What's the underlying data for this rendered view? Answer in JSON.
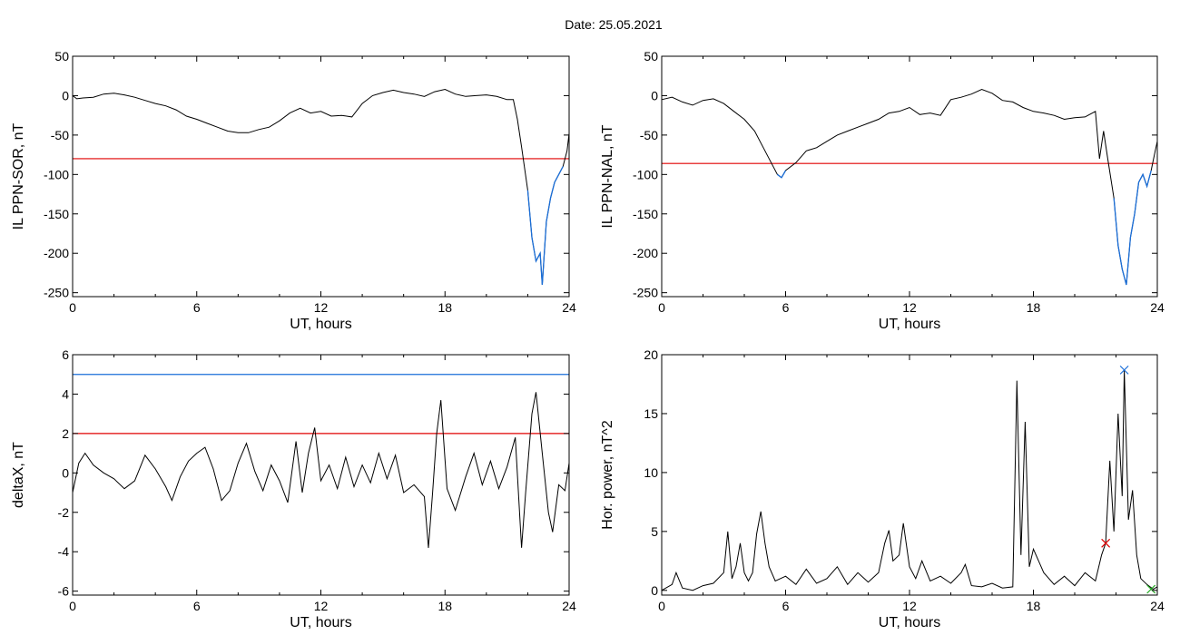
{
  "header": {
    "date_label": "Date:  25.05.2021"
  },
  "colors": {
    "axis": "#000000",
    "trace": "#000000",
    "threshold_red": "#e00000",
    "threshold_blue": "#1a6ed8",
    "marker_green": "#1faa1f"
  },
  "chart_data": [
    {
      "type": "line",
      "id": "sor",
      "ylabel": "IL PPN-SOR, nT",
      "xlabel": "UT, hours",
      "xlim": [
        0,
        24
      ],
      "ylim": [
        -255,
        50
      ],
      "xticks": [
        0,
        6,
        12,
        18,
        24
      ],
      "yticks": [
        50,
        0,
        -50,
        -100,
        -150,
        -200,
        -250
      ],
      "threshold": {
        "value": -80,
        "color": "#e00000"
      },
      "highlight_below_threshold": true,
      "series": [
        {
          "values": [
            [
              0,
              0
            ],
            [
              0.2,
              -4
            ],
            [
              0.5,
              -3
            ],
            [
              1,
              -2
            ],
            [
              1.5,
              2
            ],
            [
              2,
              3
            ],
            [
              2.5,
              1
            ],
            [
              3,
              -2
            ],
            [
              3.5,
              -6
            ],
            [
              4,
              -10
            ],
            [
              4.5,
              -13
            ],
            [
              5,
              -18
            ],
            [
              5.5,
              -26
            ],
            [
              6,
              -30
            ],
            [
              6.5,
              -35
            ],
            [
              7,
              -40
            ],
            [
              7.5,
              -45
            ],
            [
              8,
              -47
            ],
            [
              8.5,
              -47
            ],
            [
              9,
              -43
            ],
            [
              9.5,
              -40
            ],
            [
              10,
              -32
            ],
            [
              10.5,
              -22
            ],
            [
              11,
              -16
            ],
            [
              11.5,
              -22
            ],
            [
              12,
              -20
            ],
            [
              12.5,
              -26
            ],
            [
              13,
              -25
            ],
            [
              13.5,
              -27
            ],
            [
              14,
              -10
            ],
            [
              14.5,
              0
            ],
            [
              15,
              4
            ],
            [
              15.5,
              7
            ],
            [
              16,
              4
            ],
            [
              16.5,
              2
            ],
            [
              17,
              -1
            ],
            [
              17.5,
              5
            ],
            [
              18,
              8
            ],
            [
              18.5,
              2
            ],
            [
              19,
              -1
            ],
            [
              19.5,
              0
            ],
            [
              20,
              1
            ],
            [
              20.5,
              -1
            ],
            [
              21,
              -5
            ],
            [
              21.3,
              -5
            ],
            [
              21.5,
              -30
            ],
            [
              21.7,
              -65
            ],
            [
              22.0,
              -120
            ],
            [
              22.2,
              -180
            ],
            [
              22.4,
              -210
            ],
            [
              22.6,
              -200
            ],
            [
              22.7,
              -240
            ],
            [
              22.9,
              -160
            ],
            [
              23.1,
              -130
            ],
            [
              23.3,
              -110
            ],
            [
              23.5,
              -100
            ],
            [
              23.7,
              -90
            ],
            [
              23.9,
              -70
            ],
            [
              24,
              -48
            ]
          ]
        }
      ]
    },
    {
      "type": "line",
      "id": "nal",
      "ylabel": "IL PPN-NAL, nT",
      "xlabel": "UT, hours",
      "xlim": [
        0,
        24
      ],
      "ylim": [
        -255,
        50
      ],
      "xticks": [
        0,
        6,
        12,
        18,
        24
      ],
      "yticks": [
        50,
        0,
        -50,
        -100,
        -150,
        -200,
        -250
      ],
      "threshold": {
        "value": -86,
        "color": "#e00000"
      },
      "highlight_below_threshold": true,
      "series": [
        {
          "values": [
            [
              0,
              -5
            ],
            [
              0.5,
              -2
            ],
            [
              1,
              -8
            ],
            [
              1.5,
              -12
            ],
            [
              2,
              -6
            ],
            [
              2.5,
              -4
            ],
            [
              3,
              -10
            ],
            [
              3.5,
              -20
            ],
            [
              4,
              -30
            ],
            [
              4.5,
              -45
            ],
            [
              5,
              -70
            ],
            [
              5.3,
              -85
            ],
            [
              5.6,
              -100
            ],
            [
              5.8,
              -104
            ],
            [
              6,
              -95
            ],
            [
              6.5,
              -85
            ],
            [
              7,
              -70
            ],
            [
              7.5,
              -66
            ],
            [
              8,
              -58
            ],
            [
              8.5,
              -50
            ],
            [
              9,
              -45
            ],
            [
              9.5,
              -40
            ],
            [
              10,
              -35
            ],
            [
              10.5,
              -30
            ],
            [
              11,
              -22
            ],
            [
              11.5,
              -20
            ],
            [
              12,
              -15
            ],
            [
              12.5,
              -24
            ],
            [
              13,
              -22
            ],
            [
              13.5,
              -25
            ],
            [
              14,
              -5
            ],
            [
              14.5,
              -2
            ],
            [
              15,
              2
            ],
            [
              15.5,
              8
            ],
            [
              16,
              3
            ],
            [
              16.5,
              -6
            ],
            [
              17,
              -8
            ],
            [
              17.5,
              -15
            ],
            [
              18,
              -20
            ],
            [
              18.5,
              -22
            ],
            [
              19,
              -25
            ],
            [
              19.5,
              -30
            ],
            [
              20,
              -28
            ],
            [
              20.5,
              -27
            ],
            [
              21,
              -20
            ],
            [
              21.2,
              -80
            ],
            [
              21.4,
              -45
            ],
            [
              21.6,
              -80
            ],
            [
              21.9,
              -130
            ],
            [
              22.1,
              -190
            ],
            [
              22.3,
              -220
            ],
            [
              22.5,
              -240
            ],
            [
              22.7,
              -180
            ],
            [
              22.9,
              -150
            ],
            [
              23.1,
              -110
            ],
            [
              23.3,
              -100
            ],
            [
              23.5,
              -115
            ],
            [
              23.7,
              -95
            ],
            [
              23.9,
              -70
            ],
            [
              24,
              -58
            ]
          ]
        }
      ]
    },
    {
      "type": "line",
      "id": "deltax",
      "ylabel": "deltaX, nT",
      "xlabel": "UT, hours",
      "xlim": [
        0,
        24
      ],
      "ylim": [
        -6.2,
        6
      ],
      "xticks": [
        0,
        6,
        12,
        18,
        24
      ],
      "yticks": [
        6,
        4,
        2,
        0,
        -2,
        -4,
        -6
      ],
      "thresholds": [
        {
          "value": 5,
          "color": "#1a6ed8"
        },
        {
          "value": 2,
          "color": "#e00000"
        }
      ],
      "series": [
        {
          "values": [
            [
              0,
              -1
            ],
            [
              0.3,
              0.5
            ],
            [
              0.6,
              1
            ],
            [
              1,
              0.4
            ],
            [
              1.5,
              0
            ],
            [
              2,
              -0.3
            ],
            [
              2.5,
              -0.8
            ],
            [
              3,
              -0.4
            ],
            [
              3.5,
              0.9
            ],
            [
              4,
              0.2
            ],
            [
              4.5,
              -0.7
            ],
            [
              4.8,
              -1.4
            ],
            [
              5.2,
              -0.2
            ],
            [
              5.6,
              0.6
            ],
            [
              6,
              1
            ],
            [
              6.4,
              1.3
            ],
            [
              6.8,
              0.2
            ],
            [
              7.2,
              -1.4
            ],
            [
              7.6,
              -0.9
            ],
            [
              8,
              0.5
            ],
            [
              8.4,
              1.5
            ],
            [
              8.8,
              0.1
            ],
            [
              9.2,
              -0.9
            ],
            [
              9.6,
              0.4
            ],
            [
              10,
              -0.4
            ],
            [
              10.4,
              -1.5
            ],
            [
              10.8,
              1.6
            ],
            [
              11.1,
              -1
            ],
            [
              11.4,
              1
            ],
            [
              11.7,
              2.3
            ],
            [
              12,
              -0.4
            ],
            [
              12.4,
              0.4
            ],
            [
              12.8,
              -0.8
            ],
            [
              13.2,
              0.8
            ],
            [
              13.6,
              -0.7
            ],
            [
              14,
              0.4
            ],
            [
              14.4,
              -0.5
            ],
            [
              14.8,
              1
            ],
            [
              15.2,
              -0.3
            ],
            [
              15.6,
              0.9
            ],
            [
              16,
              -1
            ],
            [
              16.5,
              -0.6
            ],
            [
              17,
              -1.2
            ],
            [
              17.2,
              -3.8
            ],
            [
              17.4,
              -1
            ],
            [
              17.6,
              2
            ],
            [
              17.8,
              3.7
            ],
            [
              18.1,
              -0.8
            ],
            [
              18.5,
              -1.9
            ],
            [
              19,
              -0.2
            ],
            [
              19.4,
              1
            ],
            [
              19.8,
              -0.6
            ],
            [
              20.2,
              0.6
            ],
            [
              20.6,
              -0.8
            ],
            [
              21,
              0.3
            ],
            [
              21.4,
              1.8
            ],
            [
              21.7,
              -3.8
            ],
            [
              21.9,
              -1
            ],
            [
              22.2,
              3
            ],
            [
              22.4,
              4.1
            ],
            [
              22.7,
              1
            ],
            [
              23,
              -2
            ],
            [
              23.2,
              -3
            ],
            [
              23.5,
              -0.6
            ],
            [
              23.8,
              -0.9
            ],
            [
              24,
              0.5
            ]
          ]
        }
      ]
    },
    {
      "type": "line",
      "id": "power",
      "ylabel": "Hor. power, nT^2",
      "xlabel": "UT, hours",
      "xlim": [
        0,
        24
      ],
      "ylim": [
        -0.4,
        20
      ],
      "xticks": [
        0,
        6,
        12,
        18,
        24
      ],
      "yticks": [
        20,
        15,
        10,
        5,
        0
      ],
      "markers": [
        {
          "x": 21.5,
          "y": 4.0,
          "color": "#e00000"
        },
        {
          "x": 22.4,
          "y": 18.7,
          "color": "#1a6ed8"
        },
        {
          "x": 23.7,
          "y": 0.1,
          "color": "#1faa1f"
        }
      ],
      "series": [
        {
          "values": [
            [
              0,
              0
            ],
            [
              0.5,
              0.5
            ],
            [
              0.7,
              1.5
            ],
            [
              1,
              0.2
            ],
            [
              1.5,
              0
            ],
            [
              2,
              0.4
            ],
            [
              2.5,
              0.6
            ],
            [
              3,
              1.5
            ],
            [
              3.2,
              5
            ],
            [
              3.4,
              1
            ],
            [
              3.6,
              2
            ],
            [
              3.8,
              4
            ],
            [
              4,
              1.5
            ],
            [
              4.2,
              0.8
            ],
            [
              4.4,
              1.5
            ],
            [
              4.6,
              4.8
            ],
            [
              4.8,
              6.7
            ],
            [
              5,
              4
            ],
            [
              5.2,
              2
            ],
            [
              5.5,
              0.8
            ],
            [
              6,
              1.2
            ],
            [
              6.5,
              0.5
            ],
            [
              7,
              1.8
            ],
            [
              7.5,
              0.6
            ],
            [
              8,
              1
            ],
            [
              8.5,
              2
            ],
            [
              9,
              0.5
            ],
            [
              9.5,
              1.5
            ],
            [
              10,
              0.7
            ],
            [
              10.5,
              1.5
            ],
            [
              10.8,
              4
            ],
            [
              11,
              5.1
            ],
            [
              11.2,
              2.5
            ],
            [
              11.5,
              3
            ],
            [
              11.7,
              5.7
            ],
            [
              12,
              2
            ],
            [
              12.3,
              1
            ],
            [
              12.6,
              2.5
            ],
            [
              13,
              0.8
            ],
            [
              13.5,
              1.2
            ],
            [
              14,
              0.6
            ],
            [
              14.5,
              1.5
            ],
            [
              14.7,
              2.2
            ],
            [
              15,
              0.4
            ],
            [
              15.5,
              0.3
            ],
            [
              16,
              0.6
            ],
            [
              16.5,
              0.2
            ],
            [
              17,
              0.3
            ],
            [
              17.2,
              17.8
            ],
            [
              17.4,
              3
            ],
            [
              17.6,
              14.3
            ],
            [
              17.8,
              2
            ],
            [
              18,
              3.5
            ],
            [
              18.5,
              1.5
            ],
            [
              19,
              0.5
            ],
            [
              19.5,
              1.2
            ],
            [
              20,
              0.4
            ],
            [
              20.5,
              1.5
            ],
            [
              21,
              0.8
            ],
            [
              21.3,
              3
            ],
            [
              21.5,
              4
            ],
            [
              21.7,
              11
            ],
            [
              21.9,
              5
            ],
            [
              22.1,
              15
            ],
            [
              22.3,
              8
            ],
            [
              22.4,
              18.7
            ],
            [
              22.6,
              6
            ],
            [
              22.8,
              8.5
            ],
            [
              23,
              3
            ],
            [
              23.2,
              1
            ],
            [
              23.5,
              0.5
            ],
            [
              23.8,
              0.1
            ],
            [
              24,
              0.3
            ]
          ]
        }
      ]
    }
  ]
}
